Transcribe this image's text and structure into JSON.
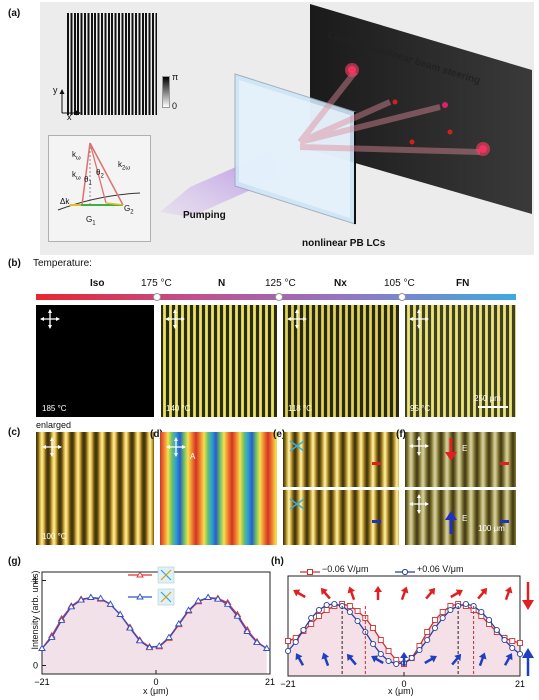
{
  "panel_labels": {
    "a": "(a)",
    "b": "(b)",
    "c": "(c)",
    "d": "(d)",
    "e": "(e)",
    "f": "(f)",
    "g": "(g)",
    "h": "(h)"
  },
  "panel_a": {
    "title_banner": "Linear & nonlinear beam steering",
    "pumping": "Pumping",
    "device": "nonlinear PB LCs",
    "scale_max": "π",
    "scale_min": "0",
    "axis_y": "y",
    "axis_x": "x",
    "inset": {
      "k_ul": "k",
      "k_ul_sub": "ω",
      "k_ul2": "k",
      "k_ul2_sub": "ω",
      "k2": "k",
      "k2_sub": "2ω",
      "theta1": "θ",
      "theta1_sub": "1",
      "theta2": "θ",
      "theta2_sub": "2",
      "dk": "Δk",
      "g1": "G",
      "g1_sub": "1",
      "g2": "G",
      "g2_sub": "2"
    }
  },
  "panel_b": {
    "temperature_label": "Temperature:",
    "phases": [
      "Iso",
      "N",
      "Nx",
      "FN"
    ],
    "transitions": [
      "175 °C",
      "125 °C",
      "105 °C"
    ],
    "image_temps": [
      "185 °C",
      "140 °C",
      "118 °C",
      "95 °C"
    ],
    "scale_bar": "250 μm",
    "gradient_colors": [
      "#e8262f",
      "#c05090",
      "#8e79c6",
      "#3fa9e0"
    ]
  },
  "panel_c": {
    "caption": "enlarged",
    "temp": "100 °C"
  },
  "panel_d": {
    "arrow_label": "A"
  },
  "panel_f": {
    "field_label_top": "E",
    "field_label_bottom": "E",
    "scale_bar": "100 μm"
  },
  "chart_data": [
    {
      "type": "line",
      "panel": "g",
      "xlabel": "x (μm)",
      "ylabel": "Intensity (arb. units)",
      "xlim": [
        -21,
        21
      ],
      "ylim": [
        -0.1,
        1.1
      ],
      "xticks": [
        "−21",
        "0",
        "21"
      ],
      "yticks": [
        "0",
        "1"
      ],
      "series": [
        {
          "color": "#e03030",
          "marker": "triangle",
          "x": [
            -21,
            -19.2,
            -17.4,
            -15.6,
            -13.8,
            -12,
            -10.2,
            -8.4,
            -6.6,
            -4.8,
            -3,
            -1.2,
            0.6,
            2.4,
            4.2,
            6,
            7.8,
            9.6,
            11.4,
            13.2,
            15,
            16.8,
            18.6,
            20.4
          ],
          "values": [
            0.2,
            0.35,
            0.55,
            0.7,
            0.78,
            0.8,
            0.78,
            0.72,
            0.6,
            0.45,
            0.3,
            0.22,
            0.22,
            0.32,
            0.48,
            0.64,
            0.75,
            0.8,
            0.79,
            0.74,
            0.6,
            0.42,
            0.28,
            0.2
          ]
        },
        {
          "color": "#3050c8",
          "marker": "triangle",
          "x": [
            -21,
            -19.2,
            -17.4,
            -15.6,
            -13.8,
            -12,
            -10.2,
            -8.4,
            -6.6,
            -4.8,
            -3,
            -1.2,
            0.6,
            2.4,
            4.2,
            6,
            7.8,
            9.6,
            11.4,
            13.2,
            15,
            16.8,
            18.6,
            20.4
          ],
          "values": [
            0.2,
            0.33,
            0.53,
            0.69,
            0.77,
            0.8,
            0.79,
            0.72,
            0.6,
            0.44,
            0.29,
            0.21,
            0.23,
            0.33,
            0.49,
            0.65,
            0.76,
            0.8,
            0.78,
            0.72,
            0.58,
            0.4,
            0.27,
            0.2
          ]
        }
      ]
    },
    {
      "type": "line",
      "panel": "h",
      "xlabel": "x (μm)",
      "xlim": [
        -21,
        21
      ],
      "xticks": [
        "−21",
        "0",
        "21"
      ],
      "series": [
        {
          "name": "−0.06 V/μm",
          "color": "#d03030",
          "marker": "square",
          "x": [
            -21,
            -19.6,
            -18.2,
            -16.8,
            -15.4,
            -14,
            -12.6,
            -11.2,
            -9.8,
            -8.4,
            -7,
            -5.6,
            -4.2,
            -2.8,
            -1.4,
            0,
            1.4,
            2.8,
            4.2,
            5.6,
            7,
            8.4,
            9.8,
            11.2,
            12.6,
            14,
            15.4,
            16.8,
            18.2,
            19.6,
            21
          ],
          "values": [
            0.35,
            0.38,
            0.45,
            0.52,
            0.6,
            0.66,
            0.7,
            0.72,
            0.7,
            0.65,
            0.58,
            0.48,
            0.36,
            0.25,
            0.16,
            0.12,
            0.18,
            0.3,
            0.44,
            0.56,
            0.64,
            0.7,
            0.72,
            0.7,
            0.66,
            0.6,
            0.52,
            0.44,
            0.38,
            0.35,
            0.33
          ]
        },
        {
          "name": "+0.06 V/μm",
          "color": "#2a3fa0",
          "marker": "circle",
          "x": [
            -21,
            -19.6,
            -18.2,
            -16.8,
            -15.4,
            -14,
            -12.6,
            -11.2,
            -9.8,
            -8.4,
            -7,
            -5.6,
            -4.2,
            -2.8,
            -1.4,
            0,
            1.4,
            2.8,
            4.2,
            5.6,
            7,
            8.4,
            9.8,
            11.2,
            12.6,
            14,
            15.4,
            16.8,
            18.2,
            19.6,
            21
          ],
          "values": [
            0.25,
            0.34,
            0.46,
            0.58,
            0.66,
            0.71,
            0.72,
            0.7,
            0.64,
            0.55,
            0.44,
            0.32,
            0.22,
            0.15,
            0.12,
            0.13,
            0.18,
            0.26,
            0.36,
            0.48,
            0.58,
            0.66,
            0.7,
            0.72,
            0.7,
            0.64,
            0.56,
            0.46,
            0.36,
            0.28,
            0.22
          ]
        }
      ]
    }
  ]
}
